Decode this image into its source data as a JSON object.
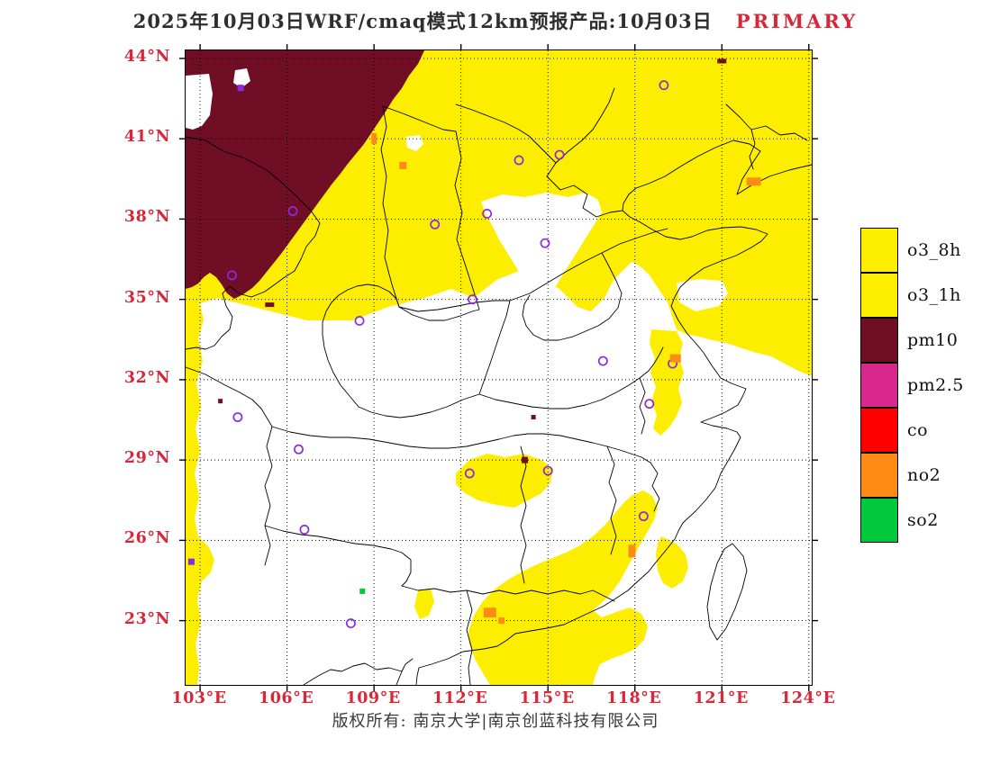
{
  "title": {
    "main": "2025年10月03日WRF/cmaq模式12km预报产品:10月03日",
    "tag": "PRIMARY"
  },
  "footer": {
    "copyright": "版权所有: 南京大学|南京创蓝科技有限公司"
  },
  "colors": {
    "o3_8h": "#fdee00",
    "o3_1h": "#fdee00",
    "pm10": "#6f0e24",
    "pm25": "#d8288c",
    "co": "#fe0000",
    "no2": "#ff8b17",
    "so2": "#00c83c",
    "axis_label": "#d92638",
    "title_tag": "#d92638",
    "marker_purple": "#8a2be2"
  },
  "legend": {
    "items": [
      {
        "label": "o3_8h",
        "color_key": "o3_8h"
      },
      {
        "label": "o3_1h",
        "color_key": "o3_1h"
      },
      {
        "label": "pm10",
        "color_key": "pm10"
      },
      {
        "label": "pm2.5",
        "color_key": "pm25"
      },
      {
        "label": "co",
        "color_key": "co"
      },
      {
        "label": "no2",
        "color_key": "no2"
      },
      {
        "label": "so2",
        "color_key": "so2"
      }
    ]
  },
  "chart_data": {
    "type": "heatmap",
    "subtype": "geographic-air-quality-exceedance-map",
    "title": "2025年10月03日WRF/cmaq模式12km预报产品:10月03日",
    "x_range": [
      102.5,
      124.1
    ],
    "y_range": [
      20.6,
      44.3
    ],
    "x_ticks": [
      {
        "value": 103,
        "label": "103°E"
      },
      {
        "value": 106,
        "label": "106°E"
      },
      {
        "value": 109,
        "label": "109°E"
      },
      {
        "value": 112,
        "label": "112°E"
      },
      {
        "value": 115,
        "label": "115°E"
      },
      {
        "value": 118,
        "label": "118°E"
      },
      {
        "value": 121,
        "label": "121°E"
      },
      {
        "value": 124,
        "label": "124°E"
      }
    ],
    "y_ticks": [
      {
        "value": 23,
        "label": "23°N"
      },
      {
        "value": 26,
        "label": "26°N"
      },
      {
        "value": 29,
        "label": "29°N"
      },
      {
        "value": 32,
        "label": "32°N"
      },
      {
        "value": 35,
        "label": "35°N"
      },
      {
        "value": 38,
        "label": "38°N"
      },
      {
        "value": 41,
        "label": "41°N"
      },
      {
        "value": 44,
        "label": "44°N"
      }
    ],
    "legend_entries": [
      "o3_8h",
      "o3_1h",
      "pm10",
      "pm2.5",
      "co",
      "no2",
      "so2"
    ],
    "stations": [
      {
        "lon": 119.0,
        "lat": 43.0
      },
      {
        "lon": 106.2,
        "lat": 38.3
      },
      {
        "lon": 114.0,
        "lat": 40.2
      },
      {
        "lon": 115.4,
        "lat": 40.4
      },
      {
        "lon": 112.9,
        "lat": 38.2
      },
      {
        "lon": 111.1,
        "lat": 37.8
      },
      {
        "lon": 114.9,
        "lat": 37.1
      },
      {
        "lon": 112.4,
        "lat": 35.0
      },
      {
        "lon": 108.5,
        "lat": 34.2
      },
      {
        "lon": 104.1,
        "lat": 35.9
      },
      {
        "lon": 116.9,
        "lat": 32.7
      },
      {
        "lon": 118.5,
        "lat": 31.1
      },
      {
        "lon": 104.3,
        "lat": 30.6
      },
      {
        "lon": 106.4,
        "lat": 29.4
      },
      {
        "lon": 112.3,
        "lat": 28.5
      },
      {
        "lon": 115.0,
        "lat": 28.6
      },
      {
        "lon": 118.3,
        "lat": 26.9
      },
      {
        "lon": 106.6,
        "lat": 26.4
      },
      {
        "lon": 108.2,
        "lat": 22.9
      },
      {
        "lon": 119.3,
        "lat": 32.6
      }
    ],
    "patches": [
      {
        "lon": 109.0,
        "lat": 41.0,
        "w": 6,
        "h": 12,
        "pollutant": "no2"
      },
      {
        "lon": 110.0,
        "lat": 40.0,
        "w": 8,
        "h": 8,
        "pollutant": "no2"
      },
      {
        "lon": 122.1,
        "lat": 39.4,
        "w": 16,
        "h": 9,
        "pollutant": "no2"
      },
      {
        "lon": 119.4,
        "lat": 32.8,
        "w": 12,
        "h": 9,
        "pollutant": "no2"
      },
      {
        "lon": 117.9,
        "lat": 25.6,
        "w": 8,
        "h": 14,
        "pollutant": "no2"
      },
      {
        "lon": 113.0,
        "lat": 23.3,
        "w": 14,
        "h": 11,
        "pollutant": "no2"
      },
      {
        "lon": 113.4,
        "lat": 23.0,
        "w": 7,
        "h": 7,
        "pollutant": "no2"
      },
      {
        "lon": 108.6,
        "lat": 24.1,
        "w": 6,
        "h": 6,
        "pollutant": "so2"
      },
      {
        "lon": 105.4,
        "lat": 34.8,
        "w": 10,
        "h": 5,
        "pollutant": "pm10"
      },
      {
        "lon": 114.2,
        "lat": 29.0,
        "w": 7,
        "h": 7,
        "pollutant": "pm10"
      },
      {
        "lon": 114.5,
        "lat": 30.6,
        "w": 5,
        "h": 5,
        "pollutant": "pm10"
      },
      {
        "lon": 103.7,
        "lat": 31.2,
        "w": 5,
        "h": 5,
        "pollutant": "pm10"
      },
      {
        "lon": 121.0,
        "lat": 43.9,
        "w": 10,
        "h": 5,
        "pollutant": "pm10"
      },
      {
        "lon": 104.4,
        "lat": 42.9,
        "w": 7,
        "h": 7,
        "pollutant": "station"
      },
      {
        "lon": 102.7,
        "lat": 25.2,
        "w": 7,
        "h": 7,
        "pollutant": "station"
      }
    ]
  }
}
